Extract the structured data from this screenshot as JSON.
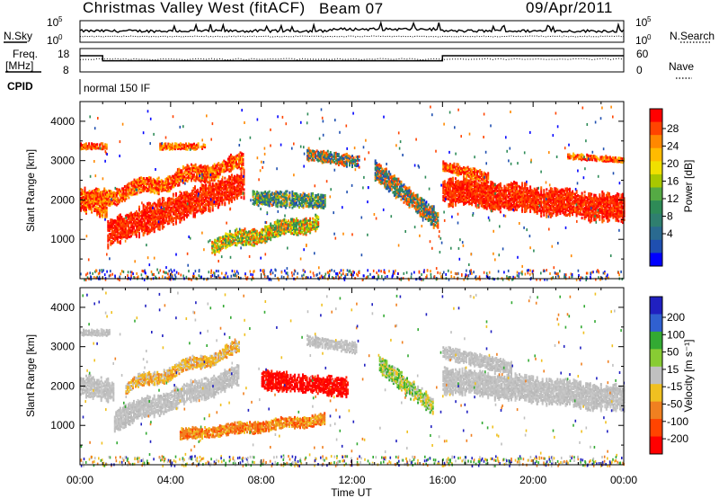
{
  "header": {
    "title": "Christmas Valley West (fitACF)",
    "beam": "Beam 07",
    "date": "09/Apr/2011"
  },
  "labels": {
    "nsky": "N.Sky",
    "nsearch": "N.Search",
    "freq": "Freq.",
    "freq_unit": "[MHz]",
    "nave": "Nave",
    "cpid": "CPID",
    "cpid_value": "normal 150 IF"
  },
  "chart_data": [
    {
      "type": "line",
      "name": "noise-panel",
      "series_styles": [
        "solid",
        "dotted"
      ],
      "yticks_left": [
        {
          "base": "10",
          "exp": "5"
        },
        {
          "base": "10",
          "exp": "0"
        }
      ],
      "yticks_right": [
        {
          "base": "10",
          "exp": "5"
        },
        {
          "base": "10",
          "exp": "0"
        }
      ]
    },
    {
      "type": "line",
      "name": "frequency-panel",
      "yticks_left": [
        "18",
        "8"
      ],
      "yticks_right": [
        "60",
        "0"
      ],
      "freq_step_hours": [
        1.0,
        16.0
      ],
      "freq_values": {
        "before": 17,
        "during": 14.2,
        "after": 17
      }
    },
    {
      "type": "heatmap",
      "name": "power",
      "ylabel": "Slant Range [km]",
      "yticks": [
        "1000",
        "2000",
        "3000",
        "4000"
      ],
      "ylim": [
        0,
        4500
      ],
      "xlim": [
        0,
        24
      ],
      "colorbar": {
        "label": "Power [dB]",
        "ticks": [
          "28",
          "24",
          "20",
          "16",
          "12",
          "8",
          "4"
        ],
        "colors": [
          "#ff0000",
          "#ff4400",
          "#ff8800",
          "#ffbb00",
          "#f0e000",
          "#a8c800",
          "#55aa44",
          "#2e8b57",
          "#2f7f6f",
          "#2a6a90",
          "#1f4fb0",
          "#0000ff"
        ]
      }
    },
    {
      "type": "heatmap",
      "name": "velocity",
      "ylabel": "Slant Range [km]",
      "yticks": [
        "1000",
        "2000",
        "3000",
        "4000"
      ],
      "ylim": [
        0,
        4500
      ],
      "xlim": [
        0,
        24
      ],
      "colorbar": {
        "label": "Velocity [m s⁻¹]",
        "ticks": [
          "200",
          "100",
          "50",
          "15",
          "-15",
          "-50",
          "-100",
          "-200"
        ],
        "colors": [
          "#2020c0",
          "#3060d0",
          "#33aa33",
          "#88cc33",
          "#c0c0c0",
          "#f0c020",
          "#f08020",
          "#ff4400",
          "#ff0000"
        ]
      }
    }
  ],
  "xaxis": {
    "ticks": [
      "00:00",
      "04:00",
      "08:00",
      "12:00",
      "16:00",
      "20:00",
      "00:00"
    ],
    "label": "Time UT"
  }
}
